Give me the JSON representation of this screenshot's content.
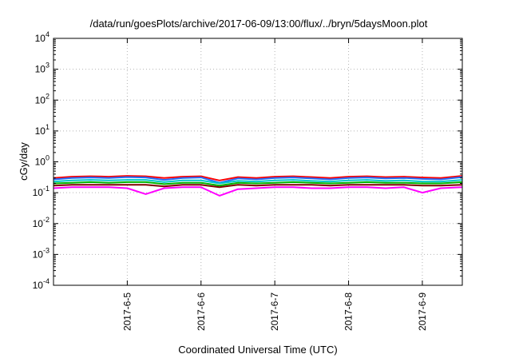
{
  "chart_data": {
    "type": "line",
    "title": "/data/run/goesPlots/archive/2017-06-09/13:00/flux/../bryn/5daysMoon.plot",
    "xlabel": "Coordinated Universal Time (UTC)",
    "ylabel": "cGy/day",
    "yscale": "log",
    "ylim": [
      0.0001,
      10000
    ],
    "xlim": [
      "2017-06-04 00:00",
      "2017-06-09 13:00"
    ],
    "grid": true,
    "y_ticks": [
      {
        "base": "10",
        "exp": "-4",
        "value": 0.0001
      },
      {
        "base": "10",
        "exp": "-3",
        "value": 0.001
      },
      {
        "base": "10",
        "exp": "-2",
        "value": 0.01
      },
      {
        "base": "10",
        "exp": "-1",
        "value": 0.1
      },
      {
        "base": "10",
        "exp": "0",
        "value": 1
      },
      {
        "base": "10",
        "exp": "1",
        "value": 10
      },
      {
        "base": "10",
        "exp": "2",
        "value": 100
      },
      {
        "base": "10",
        "exp": "3",
        "value": 1000
      },
      {
        "base": "10",
        "exp": "4",
        "value": 10000
      }
    ],
    "x_ticks": [
      {
        "label": "2017-6-5",
        "value": "2017-06-05 00:00"
      },
      {
        "label": "2017-6-6",
        "value": "2017-06-06 00:00"
      },
      {
        "label": "2017-6-7",
        "value": "2017-06-07 00:00"
      },
      {
        "label": "2017-6-8",
        "value": "2017-06-08 00:00"
      },
      {
        "label": "2017-6-9",
        "value": "2017-06-09 00:00"
      }
    ],
    "x": [
      "2017-06-04 00:00",
      "2017-06-04 06:00",
      "2017-06-04 12:00",
      "2017-06-04 18:00",
      "2017-06-05 00:00",
      "2017-06-05 06:00",
      "2017-06-05 12:00",
      "2017-06-05 18:00",
      "2017-06-06 00:00",
      "2017-06-06 06:00",
      "2017-06-06 12:00",
      "2017-06-06 18:00",
      "2017-06-07 00:00",
      "2017-06-07 06:00",
      "2017-06-07 12:00",
      "2017-06-07 18:00",
      "2017-06-08 00:00",
      "2017-06-08 06:00",
      "2017-06-08 12:00",
      "2017-06-08 18:00",
      "2017-06-09 00:00",
      "2017-06-09 06:00",
      "2017-06-09 13:00"
    ],
    "series": [
      {
        "color": "#ff0000",
        "values": [
          0.3,
          0.33,
          0.34,
          0.33,
          0.35,
          0.34,
          0.3,
          0.33,
          0.34,
          0.25,
          0.32,
          0.3,
          0.33,
          0.34,
          0.32,
          0.3,
          0.33,
          0.34,
          0.32,
          0.33,
          0.31,
          0.3,
          0.35
        ]
      },
      {
        "color": "#1e6eff",
        "values": [
          0.27,
          0.3,
          0.31,
          0.3,
          0.32,
          0.31,
          0.26,
          0.3,
          0.31,
          0.21,
          0.29,
          0.27,
          0.3,
          0.31,
          0.29,
          0.27,
          0.3,
          0.31,
          0.29,
          0.3,
          0.28,
          0.27,
          0.32
        ]
      },
      {
        "color": "#00c8c8",
        "values": [
          0.23,
          0.25,
          0.26,
          0.25,
          0.26,
          0.26,
          0.22,
          0.25,
          0.25,
          0.2,
          0.24,
          0.23,
          0.25,
          0.26,
          0.24,
          0.23,
          0.25,
          0.26,
          0.24,
          0.25,
          0.23,
          0.23,
          0.26
        ]
      },
      {
        "color": "#00b400",
        "values": [
          0.2,
          0.21,
          0.22,
          0.21,
          0.22,
          0.22,
          0.19,
          0.21,
          0.21,
          0.17,
          0.21,
          0.2,
          0.21,
          0.22,
          0.21,
          0.2,
          0.21,
          0.22,
          0.21,
          0.21,
          0.2,
          0.2,
          0.22
        ]
      },
      {
        "color": "#800000",
        "values": [
          0.17,
          0.18,
          0.18,
          0.18,
          0.18,
          0.18,
          0.16,
          0.18,
          0.18,
          0.15,
          0.18,
          0.17,
          0.18,
          0.18,
          0.18,
          0.17,
          0.18,
          0.18,
          0.18,
          0.18,
          0.17,
          0.17,
          0.18
        ]
      },
      {
        "color": "#ff00ff",
        "values": [
          0.14,
          0.15,
          0.15,
          0.15,
          0.14,
          0.09,
          0.14,
          0.15,
          0.15,
          0.08,
          0.13,
          0.14,
          0.15,
          0.15,
          0.14,
          0.14,
          0.15,
          0.15,
          0.14,
          0.15,
          0.1,
          0.14,
          0.15
        ]
      }
    ]
  }
}
